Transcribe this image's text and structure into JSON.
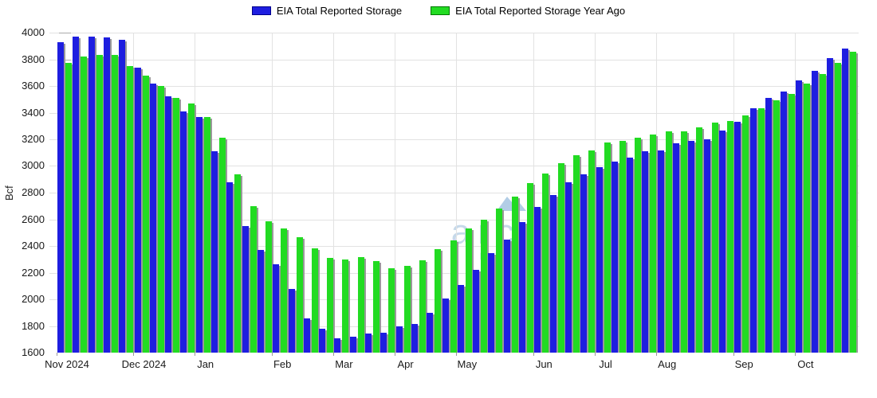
{
  "chart_data": {
    "type": "bar",
    "title": "",
    "ylabel": "Bcf",
    "ylim": [
      1600,
      4000
    ],
    "ytick_step": 200,
    "ytick_labels": [
      "4000",
      "3800",
      "3600",
      "3400",
      "3200",
      "3000",
      "2800",
      "2600",
      "2400",
      "2200",
      "2000",
      "1800",
      "1600"
    ],
    "grid": true,
    "legend_position": "top-center",
    "bar_shadow_color": "#999999",
    "watermark": {
      "brand": "arcus",
      "sub": "POWER",
      "color": "#c6d9ea"
    },
    "x_axis": {
      "months": [
        "Nov 2024",
        "Dec 2024",
        "Jan",
        "Feb",
        "Mar",
        "Apr",
        "May",
        "Jun",
        "Jul",
        "Aug",
        "Sep",
        "Oct"
      ],
      "weeks_per_month": [
        5,
        4,
        5,
        4,
        4,
        4,
        5,
        4,
        4,
        5,
        4,
        4
      ]
    },
    "series": [
      {
        "name": "EIA Total Reported Storage",
        "color": "#1e1ee0",
        "border": "#00008b",
        "values": [
          3930,
          3970,
          3970,
          3965,
          3945,
          3740,
          3620,
          3525,
          3410,
          3365,
          3110,
          2880,
          2550,
          2370,
          2265,
          2080,
          1855,
          1780,
          1710,
          1720,
          1745,
          1750,
          1800,
          1815,
          1900,
          2005,
          2110,
          2220,
          2345,
          2445,
          2580,
          2690,
          2785,
          2880,
          2935,
          2990,
          3035,
          3065,
          3110,
          3115,
          3170,
          3190,
          3200,
          3265,
          3330,
          3430,
          3510,
          3560,
          3640,
          3715,
          3810,
          3880
        ]
      },
      {
        "name": "EIA Total Reported Storage Year Ago",
        "color": "#22db22",
        "border": "#007700",
        "values": [
          3775,
          3820,
          3830,
          3835,
          3750,
          3680,
          3600,
          3510,
          3470,
          3365,
          3215,
          2940,
          2700,
          2585,
          2530,
          2465,
          2380,
          2310,
          2300,
          2315,
          2285,
          2230,
          2250,
          2295,
          2375,
          2440,
          2530,
          2600,
          2680,
          2770,
          2870,
          2945,
          3020,
          3080,
          3115,
          3175,
          3190,
          3210,
          3235,
          3260,
          3260,
          3290,
          3325,
          3335,
          3380,
          3430,
          3490,
          3540,
          3620,
          3690,
          3775,
          3855
        ]
      }
    ]
  }
}
